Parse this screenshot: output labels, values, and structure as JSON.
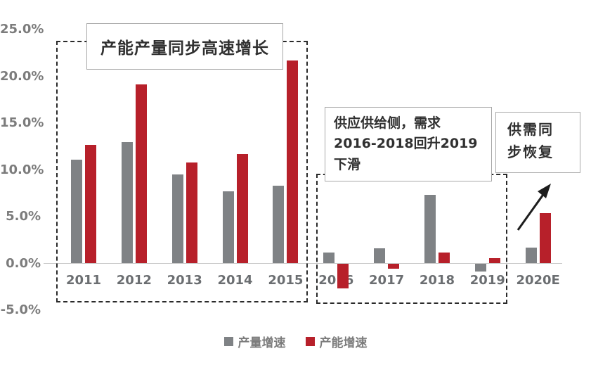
{
  "chart_data": {
    "type": "bar",
    "title": "",
    "categories": [
      "2011",
      "2012",
      "2013",
      "2014",
      "2015",
      "2016",
      "2017",
      "2018",
      "2019",
      "2020E"
    ],
    "series": [
      {
        "name": "产量增速",
        "color": "#7F8285",
        "values": [
          11.1,
          13.0,
          9.5,
          7.7,
          8.3,
          1.2,
          1.6,
          7.3,
          -0.9,
          1.7
        ]
      },
      {
        "name": "产能增速",
        "color": "#B7202A",
        "values": [
          12.7,
          19.1,
          10.8,
          11.7,
          21.7,
          -2.7,
          -0.6,
          1.2,
          0.6,
          5.4
        ]
      }
    ],
    "ylim": [
      -5,
      25
    ],
    "yticks": [
      {
        "value": 25,
        "label": "25.0%"
      },
      {
        "value": 20,
        "label": "20.0%"
      },
      {
        "value": 15,
        "label": "15.0%"
      },
      {
        "value": 10,
        "label": "10.0%"
      },
      {
        "value": 5,
        "label": "5.0%"
      },
      {
        "value": 0,
        "label": "0.0%"
      },
      {
        "value": -5,
        "label": "-5.0%"
      }
    ],
    "grid": false,
    "legend_position": "bottom"
  },
  "annotations": {
    "growth": {
      "text": "产能产量同步高速增长"
    },
    "supply": {
      "line1": "供应供给侧，需求",
      "line2": "2016-2018回升2019",
      "line3": "下滑"
    },
    "recovery": {
      "line1": "供需同",
      "line2": "步恢复"
    }
  },
  "legend": {
    "items": [
      {
        "label": "产量增速",
        "color": "#7F8285"
      },
      {
        "label": "产能增速",
        "color": "#B7202A"
      }
    ]
  }
}
